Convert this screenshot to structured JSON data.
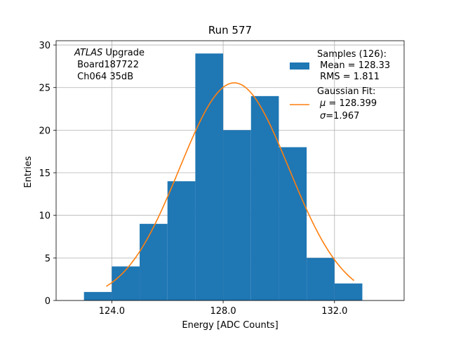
{
  "chart_data": {
    "type": "bar",
    "title": "Run 577",
    "xlabel": "Energy [ADC Counts]",
    "ylabel": "Entries",
    "xlim": [
      122.0,
      134.5
    ],
    "ylim": [
      0,
      30.5
    ],
    "xticks": [
      124.0,
      128.0,
      132.0
    ],
    "xtick_labels": [
      "124.0",
      "128.0",
      "132.0"
    ],
    "yticks": [
      0,
      5,
      10,
      15,
      20,
      25,
      30
    ],
    "ytick_labels": [
      "0",
      "5",
      "10",
      "15",
      "20",
      "25",
      "30"
    ],
    "grid": true,
    "bin_edges": [
      123,
      124,
      125,
      126,
      127,
      128,
      129,
      130,
      131,
      132,
      133
    ],
    "values": [
      1,
      4,
      9,
      14,
      29,
      20,
      24,
      18,
      5,
      2
    ],
    "bar_color": "#1f77b4",
    "fit": {
      "mu": 128.399,
      "sigma": 1.967,
      "x_range": [
        123.8,
        132.7
      ],
      "color": "#ff7f0e"
    },
    "annotation": {
      "lines": [
        {
          "italic": "ATLAS",
          "rest": " Upgrade"
        },
        {
          "text": " Board187722"
        },
        {
          "text": " Ch064 35dB"
        }
      ]
    },
    "legend": {
      "placement": "top-right",
      "samples": {
        "title": "Samples (126):",
        "line1": " Mean = 128.33",
        "line2": " RMS = 1.811"
      },
      "fit": {
        "title": "Gaussian Fit:",
        "mu_symbol": "μ",
        "mu_text": " = 128.399",
        "sigma_symbol": "σ",
        "sigma_text": "=1.967"
      }
    }
  }
}
